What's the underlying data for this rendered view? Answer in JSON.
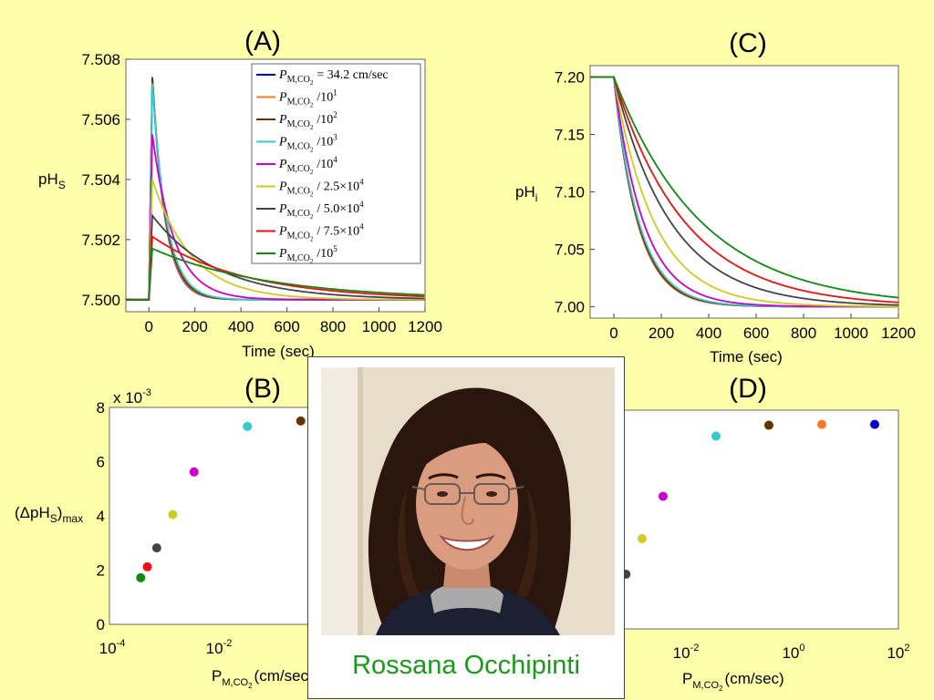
{
  "caption": "Rossana Occhipinti",
  "chart_data": [
    {
      "panel": "(A)",
      "type": "line",
      "ylabel": "pH",
      "ylabel_sub": "S",
      "xlabel": "Time (sec)",
      "xlim": [
        -100,
        1200
      ],
      "ylim": [
        7.4996,
        7.508
      ],
      "xticks": [
        0,
        200,
        400,
        600,
        800,
        1000,
        1200
      ],
      "xtick_labels": [
        "0",
        "200",
        "400",
        "600",
        "800",
        "1000",
        "1200"
      ],
      "yticks": [
        7.5,
        7.502,
        7.504,
        7.506,
        7.508
      ],
      "ytick_labels": [
        "7.500",
        "7.502",
        "7.504",
        "7.506",
        "7.508"
      ],
      "baseline": 7.5,
      "series": [
        {
          "name": "P_M,CO2 = 34.2 cm/sec",
          "color": "#0000cc",
          "peak": 7.5074,
          "tau": 55
        },
        {
          "name": "P_M,CO2 /10^1",
          "color": "#ff7722",
          "peak": 7.5074,
          "tau": 56
        },
        {
          "name": "P_M,CO2 /10^2",
          "color": "#663300",
          "peak": 7.5074,
          "tau": 58
        },
        {
          "name": "P_M,CO2 /10^3",
          "color": "#33cccc",
          "peak": 7.5072,
          "tau": 62
        },
        {
          "name": "P_M,CO2 /10^4",
          "color": "#cc00cc",
          "peak": 7.5055,
          "tau": 95
        },
        {
          "name": "P_M,CO2 / 2.5×10^4",
          "color": "#cccc22",
          "peak": 7.504,
          "tau": 170
        },
        {
          "name": "P_M,CO2 / 5.0×10^4",
          "color": "#444444",
          "peak": 7.5028,
          "tau": 280
        },
        {
          "name": "P_M,CO2 / 7.5×10^4",
          "color": "#ee1111",
          "peak": 7.5021,
          "tau": 400
        },
        {
          "name": "P_M,CO2 /10^5",
          "color": "#118811",
          "peak": 7.5017,
          "tau": 500
        }
      ],
      "legend": {
        "placement": "top-right",
        "entries": [
          {
            "label": "P",
            "sub": "M,CO",
            "sub2": "2",
            "suffix": "= 34.2 cm/sec",
            "color": "#0000cc"
          },
          {
            "label": "P",
            "sub": "M,CO",
            "sub2": "2",
            "suffix": "/10",
            "sup": "1",
            "color": "#ff7722"
          },
          {
            "label": "P",
            "sub": "M,CO",
            "sub2": "2",
            "suffix": "/10",
            "sup": "2",
            "color": "#663300"
          },
          {
            "label": "P",
            "sub": "M,CO",
            "sub2": "2",
            "suffix": "/10",
            "sup": "3",
            "color": "#33cccc"
          },
          {
            "label": "P",
            "sub": "M,CO",
            "sub2": "2",
            "suffix": "/10",
            "sup": "4",
            "color": "#cc00cc"
          },
          {
            "label": "P",
            "sub": "M,CO",
            "sub2": "2",
            "suffix": "/ 2.5×10",
            "sup": "4",
            "color": "#cccc22"
          },
          {
            "label": "P",
            "sub": "M,CO",
            "sub2": "2",
            "suffix": "/ 5.0×10",
            "sup": "4",
            "color": "#444444"
          },
          {
            "label": "P",
            "sub": "M,CO",
            "sub2": "2",
            "suffix": "/ 7.5×10",
            "sup": "4",
            "color": "#ee1111"
          },
          {
            "label": "P",
            "sub": "M,CO",
            "sub2": "2",
            "suffix": "/10",
            "sup": "5",
            "color": "#118811"
          }
        ]
      }
    },
    {
      "panel": "(B)",
      "type": "scatter",
      "ylabel": "(ΔpH",
      "ylabel_sub": "S",
      "ylabel_tail": ")",
      "ylabel_tail_sub": "max",
      "xlabel": "P",
      "xlabel_sub": "M,CO",
      "xlabel_sub2": "2",
      "xlabel_tail": "(cm/sec)",
      "xscale": "log",
      "ylim": [
        0,
        8
      ],
      "yticks": [
        0,
        2,
        4,
        6,
        8
      ],
      "ytick_labels": [
        "0",
        "2",
        "4",
        "6",
        "8"
      ],
      "y_multiplier": "x 10",
      "y_multiplier_exp": "-3",
      "xtick_labels": [
        {
          "base": "10",
          "exp": "-4"
        },
        {
          "base": "10",
          "exp": "-2"
        }
      ],
      "points": [
        {
          "x": 0.000342,
          "y": 1.72,
          "color": "#118811"
        },
        {
          "x": 0.000456,
          "y": 2.12,
          "color": "#ee1111"
        },
        {
          "x": 0.000684,
          "y": 2.82,
          "color": "#444444"
        },
        {
          "x": 0.001368,
          "y": 4.05,
          "color": "#cccc22"
        },
        {
          "x": 0.00342,
          "y": 5.62,
          "color": "#cc00cc"
        },
        {
          "x": 0.0342,
          "y": 7.3,
          "color": "#33cccc"
        },
        {
          "x": 0.342,
          "y": 7.5,
          "color": "#663300"
        }
      ]
    },
    {
      "panel": "(C)",
      "type": "line",
      "ylabel": "pH",
      "ylabel_sub": "i",
      "xlabel": "Time (sec)",
      "xlim": [
        -100,
        1200
      ],
      "ylim": [
        6.99,
        7.21
      ],
      "xticks": [
        0,
        200,
        400,
        600,
        800,
        1000,
        1200
      ],
      "xtick_labels": [
        "0",
        "200",
        "400",
        "600",
        "800",
        "1000",
        "1200"
      ],
      "yticks": [
        7.0,
        7.05,
        7.1,
        7.15,
        7.2
      ],
      "ytick_labels": [
        "7.00",
        "7.05",
        "7.10",
        "7.15",
        "7.20"
      ],
      "start": 7.2,
      "end": 7.0,
      "series": [
        {
          "name": "P_M,CO2 = 34.2 cm/sec",
          "color": "#0000cc",
          "tau": 100
        },
        {
          "name": "P_M,CO2 /10^1",
          "color": "#ff7722",
          "tau": 100
        },
        {
          "name": "P_M,CO2 /10^2",
          "color": "#663300",
          "tau": 102
        },
        {
          "name": "P_M,CO2 /10^3",
          "color": "#33cccc",
          "tau": 106
        },
        {
          "name": "P_M,CO2 /10^4",
          "color": "#cc00cc",
          "tau": 125
        },
        {
          "name": "P_M,CO2 / 2.5×10^4",
          "color": "#cccc22",
          "tau": 170
        },
        {
          "name": "P_M,CO2 / 5.0×10^4",
          "color": "#444444",
          "tau": 240
        },
        {
          "name": "P_M,CO2 / 7.5×10^4",
          "color": "#ee1111",
          "tau": 300
        },
        {
          "name": "P_M,CO2 /10^5",
          "color": "#118811",
          "tau": 370
        }
      ]
    },
    {
      "panel": "(D)",
      "type": "scatter",
      "xlabel": "P",
      "xlabel_sub": "M,CO",
      "xlabel_sub2": "2",
      "xlabel_tail": "(cm/sec)",
      "xscale": "log",
      "xtick_labels": [
        {
          "base": "10",
          "exp": "-2"
        },
        {
          "base": "10",
          "exp": "0"
        },
        {
          "base": "10",
          "exp": "2"
        }
      ],
      "points": [
        {
          "x": 0.00068,
          "y": 2.0,
          "color": "#444444"
        },
        {
          "x": 0.00137,
          "y": 3.3,
          "color": "#cccc22"
        },
        {
          "x": 0.00342,
          "y": 4.85,
          "color": "#cc00cc"
        },
        {
          "x": 0.0342,
          "y": 7.05,
          "color": "#33cccc"
        },
        {
          "x": 0.342,
          "y": 7.45,
          "color": "#663300"
        },
        {
          "x": 3.42,
          "y": 7.48,
          "color": "#ff7722"
        },
        {
          "x": 34.2,
          "y": 7.48,
          "color": "#0000cc"
        }
      ]
    }
  ],
  "photo": {
    "subject": "portrait of a smiling woman with long curly dark hair and glasses",
    "background": "#e8dccb",
    "hair": "#2a160c",
    "skin": "#d99c7f",
    "sweater": "#1c2033",
    "collar": "#a9aaa9"
  }
}
